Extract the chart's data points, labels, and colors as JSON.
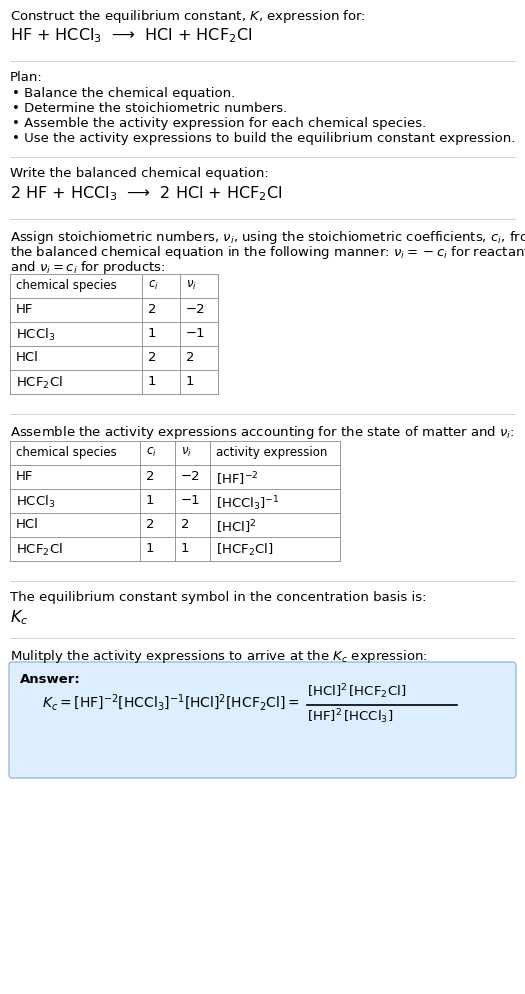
{
  "title_line1": "Construct the equilibrium constant, $K$, expression for:",
  "reaction_unbalanced": "HF + HCCl$_3$  ⟶  HCl + HCF$_2$Cl",
  "plan_header": "Plan:",
  "plan_bullets": [
    "• Balance the chemical equation.",
    "• Determine the stoichiometric numbers.",
    "• Assemble the activity expression for each chemical species.",
    "• Use the activity expressions to build the equilibrium constant expression."
  ],
  "balanced_header": "Write the balanced chemical equation:",
  "reaction_balanced": "2 HF + HCCl$_3$  ⟶  2 HCl + HCF$_2$Cl",
  "stoich_line1": "Assign stoichiometric numbers, $\\nu_i$, using the stoichiometric coefficients, $c_i$, from",
  "stoich_line2": "the balanced chemical equation in the following manner: $\\nu_i = -c_i$ for reactants",
  "stoich_line3": "and $\\nu_i = c_i$ for products:",
  "table1_headers": [
    "chemical species",
    "$c_i$",
    "$\\nu_i$"
  ],
  "table1_rows": [
    [
      "HF",
      "2",
      "−2"
    ],
    [
      "HCCl$_3$",
      "1",
      "−1"
    ],
    [
      "HCl",
      "2",
      "2"
    ],
    [
      "HCF$_2$Cl",
      "1",
      "1"
    ]
  ],
  "activity_header": "Assemble the activity expressions accounting for the state of matter and $\\nu_i$:",
  "table2_headers": [
    "chemical species",
    "$c_i$",
    "$\\nu_i$",
    "activity expression"
  ],
  "table2_rows": [
    [
      "HF",
      "2",
      "−2",
      "$[\\mathrm{HF}]^{-2}$"
    ],
    [
      "HCCl$_3$",
      "1",
      "−1",
      "$[\\mathrm{HCCl_3}]^{-1}$"
    ],
    [
      "HCl",
      "2",
      "2",
      "$[\\mathrm{HCl}]^2$"
    ],
    [
      "HCF$_2$Cl",
      "1",
      "1",
      "$[\\mathrm{HCF_2Cl}]$"
    ]
  ],
  "kc_symbol_header": "The equilibrium constant symbol in the concentration basis is:",
  "kc_symbol": "$K_c$",
  "multiply_header": "Mulitply the activity expressions to arrive at the $K_c$ expression:",
  "answer_label": "Answer:",
  "bg_color": "#ffffff",
  "answer_box_color": "#ddeeff",
  "answer_box_border": "#99bbdd",
  "text_color": "#000000",
  "font_size": 9.5
}
